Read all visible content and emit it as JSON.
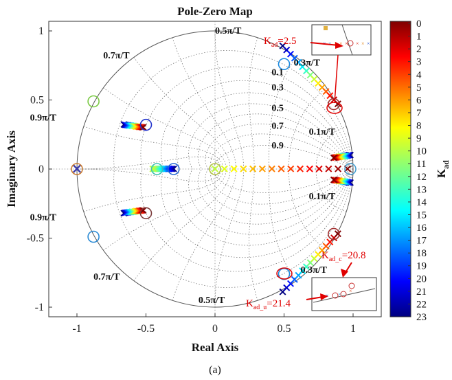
{
  "chart_data": {
    "type": "scatter",
    "title": "Pole-Zero Map",
    "xlabel": "Real Axis",
    "ylabel": "Imaginary Axis",
    "xlim": [
      -1.2,
      1.2
    ],
    "ylim": [
      -1.2,
      1.2
    ],
    "xticks": [
      "-1",
      "-0.5",
      "0",
      "0.5",
      "1"
    ],
    "yticks": [
      "1",
      "0.5",
      "0",
      "-0.5",
      "-1"
    ],
    "grid": true,
    "unit_circle": true,
    "damping_labels": [
      "0.1",
      "0.3",
      "0.5",
      "0.7",
      "0.9"
    ],
    "frequency_labels": [
      "0.5π/T",
      "0.7π/T",
      "0.3π/T",
      "0.9π/T",
      "0.1π/T",
      "0.1π/T",
      "0.9π/T",
      "0.3π/T",
      "0.7π/T",
      "0.5π/T"
    ],
    "colorbar": {
      "label": "K_ad",
      "ticks": [
        "0",
        "1",
        "2",
        "3",
        "4",
        "5",
        "6",
        "7",
        "8",
        "9",
        "10",
        "11",
        "12",
        "13",
        "14",
        "15",
        "16",
        "17",
        "18",
        "19",
        "20",
        "21",
        "22",
        "23"
      ],
      "range": [
        0,
        23
      ],
      "colormap": "jet"
    },
    "static_markers": [
      {
        "kind": "zero",
        "x": -0.88,
        "y": 0.49,
        "color": "#7ac943"
      },
      {
        "kind": "zero",
        "x": -0.88,
        "y": -0.49,
        "color": "#2a8ad4"
      },
      {
        "kind": "pole",
        "x": -1.0,
        "y": 0.0,
        "color": "#3a3aaa"
      },
      {
        "kind": "zero",
        "x": -1.0,
        "y": 0.0,
        "color": "#c87a30"
      },
      {
        "kind": "zero",
        "x": -0.5,
        "y": 0.32,
        "color": "#2233cc"
      },
      {
        "kind": "zero",
        "x": -0.5,
        "y": -0.32,
        "color": "#7a3a3a"
      },
      {
        "kind": "zero",
        "x": -0.3,
        "y": 0.0,
        "color": "#2a6ad4"
      },
      {
        "kind": "zero",
        "x": -0.42,
        "y": 0.0,
        "color": "#3fc0b0"
      },
      {
        "kind": "zero",
        "x": 0.0,
        "y": 0.0,
        "color": "#b0c040"
      },
      {
        "kind": "zero",
        "x": 0.98,
        "y": 0.0,
        "color": "#4aa0d0"
      },
      {
        "kind": "zero",
        "x": 0.86,
        "y": 0.47,
        "color": "#a03030"
      },
      {
        "kind": "zero",
        "x": 0.86,
        "y": -0.47,
        "color": "#a03030"
      },
      {
        "kind": "zero",
        "x": 0.5,
        "y": -0.76,
        "color": "#1a8ae0"
      },
      {
        "kind": "zero",
        "x": 0.5,
        "y": 0.76,
        "color": "#1a8ae0"
      }
    ],
    "root_loci": [
      {
        "name": "",
        "from": [
          0.49,
          0.89
        ],
        "to": [
          0.89,
          0.47
        ],
        "k_from": 23,
        "k_to": 0
      },
      {
        "name": "",
        "from": [
          0.49,
          -0.89
        ],
        "to": [
          0.89,
          -0.47
        ],
        "k_from": 23,
        "k_to": 0
      },
      {
        "name": "",
        "from": [
          -0.66,
          0.32
        ],
        "to": [
          -0.52,
          0.3
        ],
        "k_from": 23,
        "k_to": 0
      },
      {
        "name": "",
        "from": [
          -0.66,
          -0.32
        ],
        "to": [
          -0.52,
          -0.3
        ],
        "k_from": 23,
        "k_to": 0
      },
      {
        "name": "",
        "from": [
          -0.3,
          0.0
        ],
        "to": [
          -0.45,
          0.0
        ],
        "k_from": 23,
        "k_to": 10
      },
      {
        "name": "",
        "from": [
          0.0,
          0.0
        ],
        "to": [
          0.96,
          0.0
        ],
        "k_from": 10,
        "k_to": 0
      },
      {
        "name": "",
        "from": [
          0.98,
          0.1
        ],
        "to": [
          0.86,
          0.08
        ],
        "k_from": 23,
        "k_to": 0
      },
      {
        "name": "",
        "from": [
          0.98,
          -0.1
        ],
        "to": [
          0.86,
          -0.08
        ],
        "k_from": 23,
        "k_to": 0
      }
    ],
    "annotations": [
      {
        "text_main": "K",
        "text_sub": "ad",
        "text_tail": "=2.5"
      },
      {
        "text_main": "K",
        "text_sub": "ad_c",
        "text_tail": "=20.8"
      },
      {
        "text_main": "K",
        "text_sub": "ad_u",
        "text_tail": "=21.4"
      }
    ]
  },
  "caption": "(a)"
}
